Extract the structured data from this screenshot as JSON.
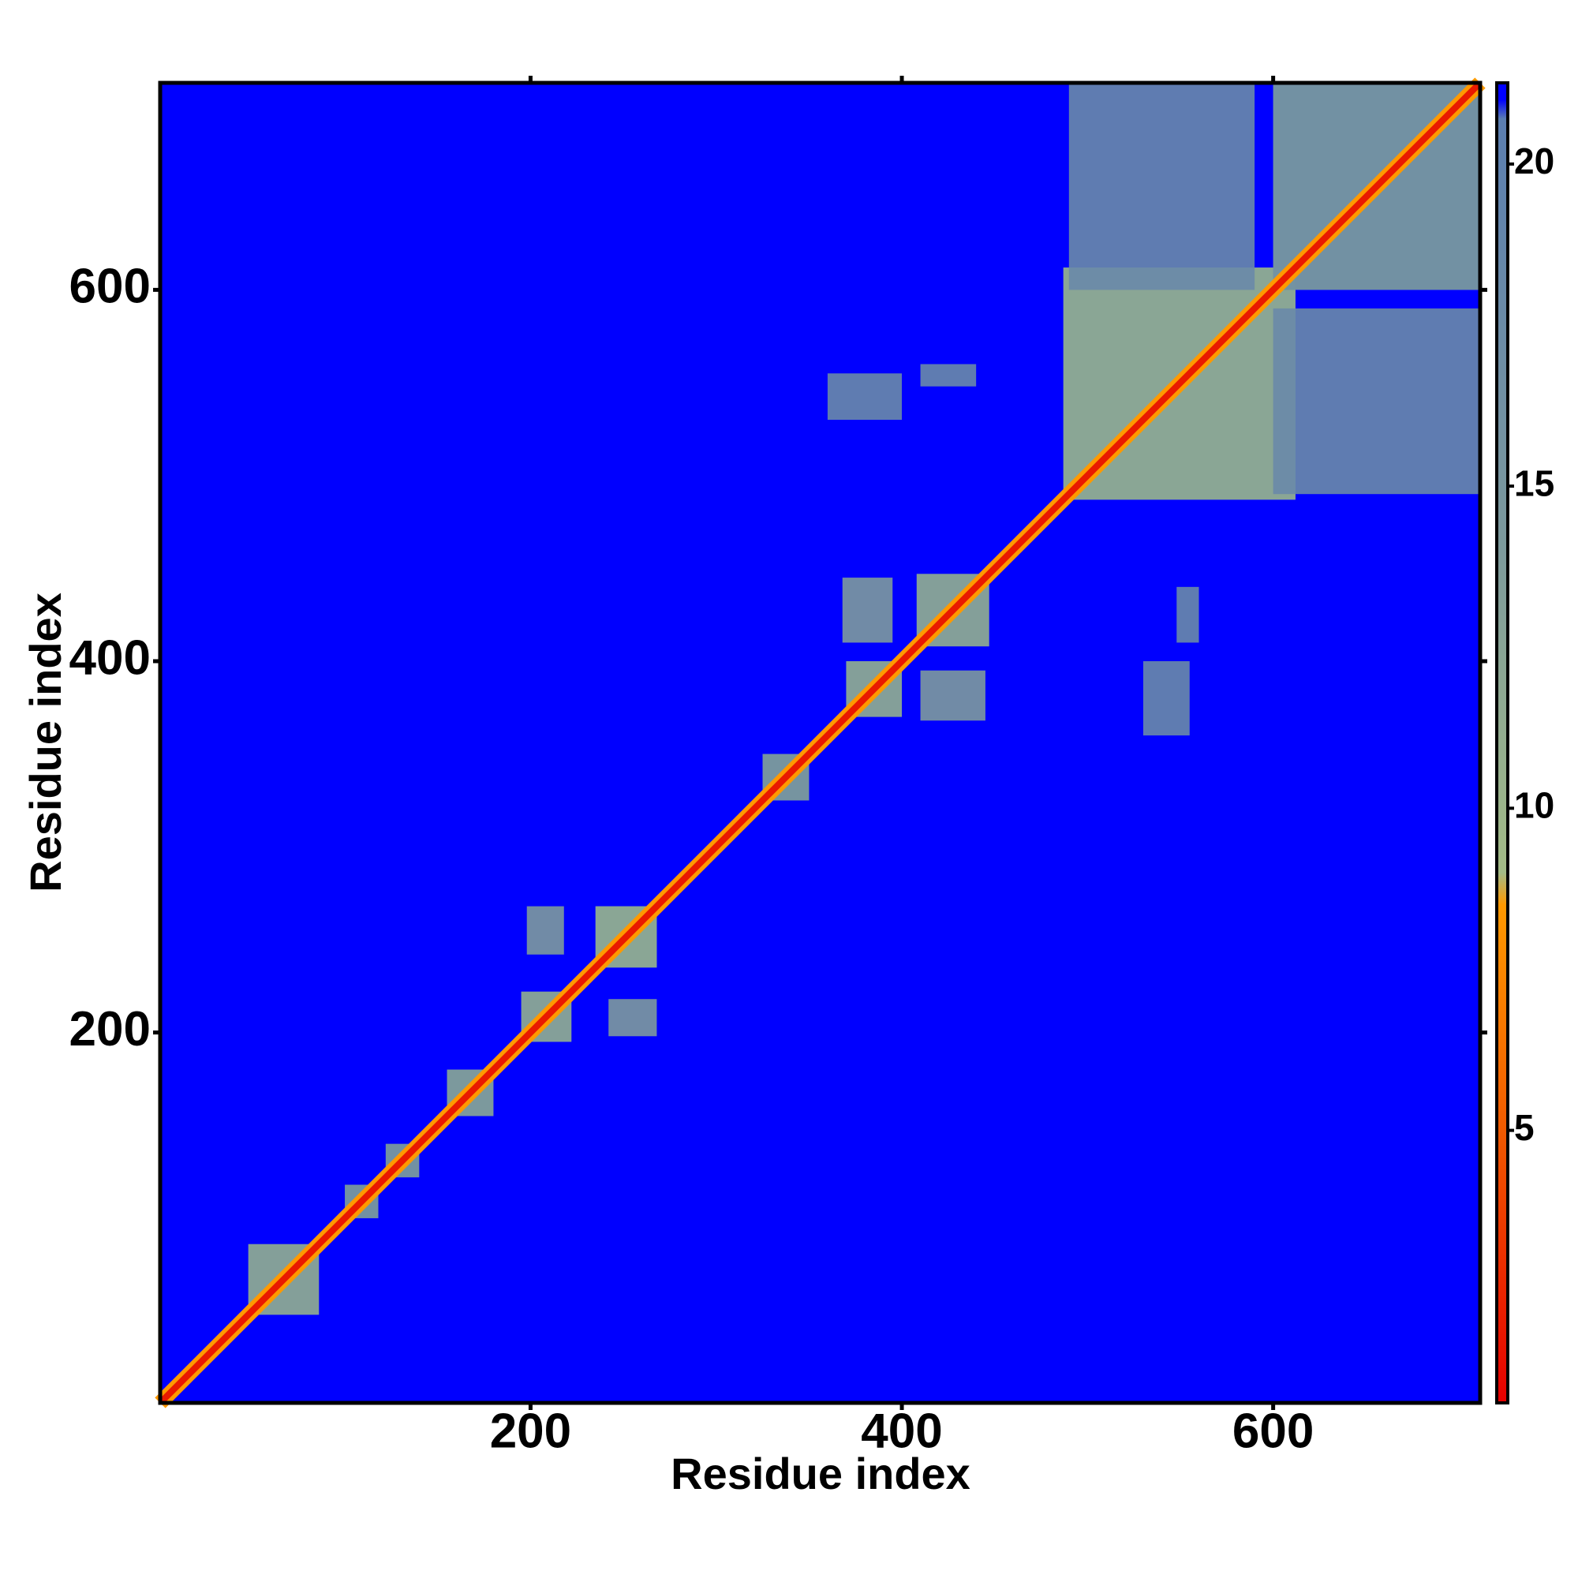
{
  "chart_data": {
    "type": "heatmap",
    "xlabel": "Residue index",
    "ylabel": "Residue index",
    "xlim": [
      0.5,
      711.5
    ],
    "ylim": [
      0.5,
      711.5
    ],
    "xticks": [
      200,
      400,
      600
    ],
    "yticks": [
      200,
      400,
      600
    ],
    "clim": [
      0.77,
      21.26
    ],
    "cticks": [
      5,
      10,
      15,
      20
    ],
    "colorscale": [
      [
        0.77,
        "#e60000"
      ],
      [
        5,
        "#f05a00"
      ],
      [
        8.5,
        "#ff9900"
      ],
      [
        9,
        "#a3bb86"
      ],
      [
        14,
        "#7d9a9c"
      ],
      [
        20.7,
        "#5b7eb0"
      ],
      [
        21,
        "#0000ff"
      ]
    ],
    "background_value": 21,
    "symmetric": true,
    "diagonal": {
      "value": 2,
      "width": 5
    },
    "patches": [
      {
        "x": [
          48,
          86
        ],
        "y": [
          48,
          86
        ],
        "value": 13
      },
      {
        "x": [
          100,
          118
        ],
        "y": [
          100,
          118
        ],
        "value": 16
      },
      {
        "x": [
          122,
          140
        ],
        "y": [
          122,
          140
        ],
        "value": 16
      },
      {
        "x": [
          155,
          180
        ],
        "y": [
          155,
          180
        ],
        "value": 14
      },
      {
        "x": [
          195,
          222
        ],
        "y": [
          195,
          222
        ],
        "value": 13
      },
      {
        "x": [
          235,
          268
        ],
        "y": [
          235,
          268
        ],
        "value": 12
      },
      {
        "x": [
          198,
          218
        ],
        "y": [
          242,
          268
        ],
        "value": 14
      },
      {
        "x": [
          325,
          350
        ],
        "y": [
          325,
          350
        ],
        "value": 15
      },
      {
        "x": [
          370,
          400
        ],
        "y": [
          370,
          400
        ],
        "value": 13
      },
      {
        "x": [
          408,
          447
        ],
        "y": [
          408,
          447
        ],
        "value": 13
      },
      {
        "x": [
          368,
          395
        ],
        "y": [
          410,
          445
        ],
        "value": 14
      },
      {
        "x": [
          487,
          612
        ],
        "y": [
          487,
          612
        ],
        "value": 12
      },
      {
        "x": [
          490,
          590
        ],
        "y": [
          600,
          711
        ],
        "value": 18
      },
      {
        "x": [
          600,
          711
        ],
        "y": [
          600,
          711
        ],
        "value": 16
      },
      {
        "x": [
          360,
          400
        ],
        "y": [
          530,
          555
        ],
        "value": 18
      },
      {
        "x": [
          410,
          440
        ],
        "y": [
          548,
          560
        ],
        "value": 18
      }
    ]
  }
}
